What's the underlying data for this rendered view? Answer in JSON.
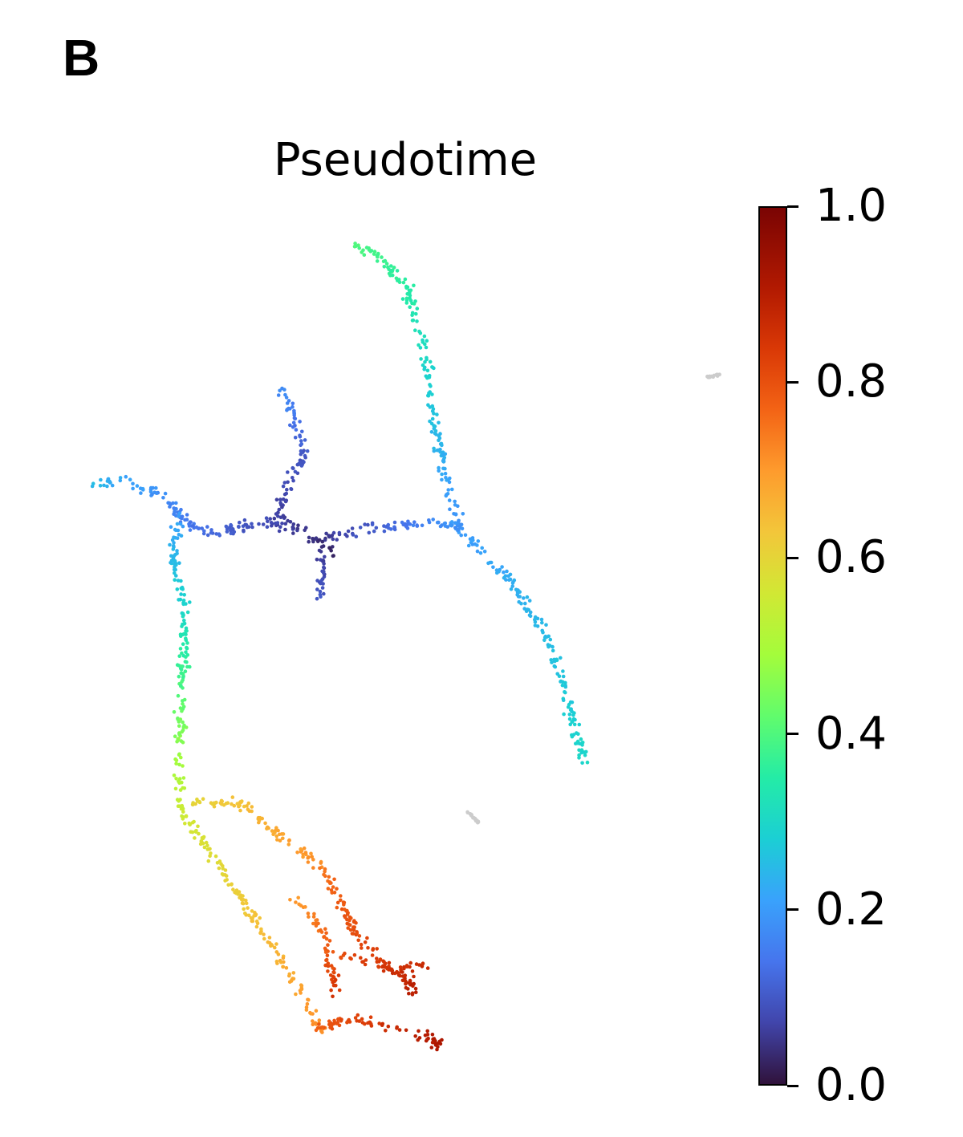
{
  "panel_label": "B",
  "chart_data": {
    "type": "scatter",
    "title": "Pseudotime",
    "xlabel": "",
    "ylabel": "",
    "colorscale": "turbo",
    "colorbar": {
      "range": [
        0.0,
        1.0
      ],
      "ticks": [
        0.0,
        0.2,
        0.4,
        0.6,
        0.8,
        1.0
      ],
      "tick_labels": [
        "0.0",
        "0.2",
        "0.4",
        "0.6",
        "0.8",
        "1.0"
      ]
    },
    "unassigned_color": "#cccccc",
    "branches": [
      {
        "pseudotime": [
          0.05,
          0.12
        ],
        "path": [
          [
            378,
            660
          ],
          [
            330,
            650
          ],
          [
            295,
            658
          ],
          [
            265,
            668
          ]
        ]
      },
      {
        "pseudotime": [
          0.03,
          0.1
        ],
        "path": [
          [
            420,
            690
          ],
          [
            395,
            672
          ],
          [
            370,
            660
          ],
          [
            345,
            640
          ],
          [
            362,
            600
          ],
          [
            380,
            562
          ]
        ]
      },
      {
        "pseudotime": [
          0.1,
          0.18
        ],
        "path": [
          [
            380,
            562
          ],
          [
            365,
            522
          ],
          [
            352,
            487
          ]
        ]
      },
      {
        "pseudotime": [
          0.05,
          0.1
        ],
        "path": [
          [
            400,
            680
          ],
          [
            402,
            745
          ]
        ]
      },
      {
        "pseudotime": [
          0.05,
          0.2
        ],
        "path": [
          [
            405,
            670
          ],
          [
            450,
            660
          ],
          [
            490,
            655
          ],
          [
            535,
            650
          ],
          [
            575,
            655
          ]
        ]
      },
      {
        "pseudotime": [
          0.2,
          0.3
        ],
        "path": [
          [
            575,
            660
          ],
          [
            640,
            730
          ],
          [
            680,
            790
          ],
          [
            705,
            860
          ],
          [
            727,
            950
          ]
        ]
      },
      {
        "pseudotime": [
          0.18,
          0.4
        ],
        "path": [
          [
            575,
            660
          ],
          [
            555,
            600
          ],
          [
            540,
            520
          ],
          [
            530,
            440
          ],
          [
            510,
            365
          ],
          [
            472,
            318
          ],
          [
            440,
            305
          ]
        ]
      },
      {
        "pseudotime": [
          0.12,
          0.25
        ],
        "path": [
          [
            265,
            668
          ],
          [
            240,
            655
          ],
          [
            222,
            640
          ],
          [
            205,
            618
          ],
          [
            150,
            598
          ],
          [
            112,
            608
          ]
        ]
      },
      {
        "pseudotime": [
          0.2,
          0.3
        ],
        "path": [
          [
            225,
            640
          ],
          [
            215,
            690
          ],
          [
            225,
            740
          ],
          [
            232,
            760
          ]
        ]
      },
      {
        "pseudotime": [
          0.3,
          0.55
        ],
        "path": [
          [
            232,
            760
          ],
          [
            228,
            830
          ],
          [
            225,
            890
          ],
          [
            222,
            960
          ],
          [
            225,
            1010
          ]
        ]
      },
      {
        "pseudotime": [
          0.55,
          0.72
        ],
        "path": [
          [
            225,
            1010
          ],
          [
            260,
            1060
          ],
          [
            300,
            1120
          ],
          [
            340,
            1180
          ],
          [
            380,
            1240
          ],
          [
            400,
            1290
          ]
        ]
      },
      {
        "pseudotime": [
          0.6,
          0.72
        ],
        "path": [
          [
            240,
            1000
          ],
          [
            300,
            1000
          ],
          [
            360,
            1050
          ],
          [
            400,
            1080
          ]
        ]
      },
      {
        "pseudotime": [
          0.75,
          0.88
        ],
        "path": [
          [
            400,
            1080
          ],
          [
            430,
            1140
          ],
          [
            455,
            1180
          ],
          [
            490,
            1210
          ],
          [
            535,
            1200
          ]
        ]
      },
      {
        "pseudotime": [
          0.78,
          0.92
        ],
        "path": [
          [
            395,
            1280
          ],
          [
            440,
            1270
          ],
          [
            480,
            1280
          ],
          [
            520,
            1290
          ],
          [
            550,
            1302
          ]
        ]
      },
      {
        "pseudotime": [
          0.7,
          0.85
        ],
        "path": [
          [
            370,
            1120
          ],
          [
            400,
            1160
          ],
          [
            410,
            1200
          ],
          [
            420,
            1240
          ]
        ]
      },
      {
        "pseudotime": [
          0.8,
          0.9
        ],
        "path": [
          [
            420,
            1190
          ],
          [
            470,
            1200
          ],
          [
            510,
            1220
          ],
          [
            515,
            1240
          ]
        ]
      }
    ],
    "unassigned_clusters": [
      {
        "path": [
          [
            880,
            470
          ],
          [
            897,
            467
          ]
        ]
      },
      {
        "path": [
          [
            583,
            1012
          ],
          [
            596,
            1025
          ]
        ]
      }
    ]
  }
}
